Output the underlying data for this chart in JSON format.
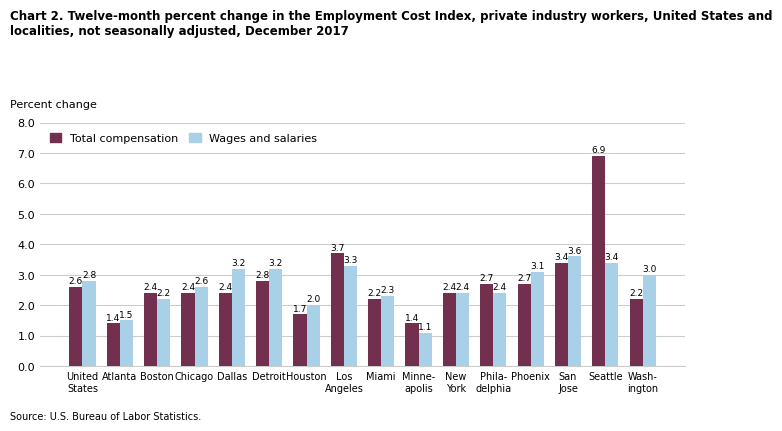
{
  "title": "Chart 2. Twelve-month percent change in the Employment Cost Index, private industry workers, United States and\nlocalities, not seasonally adjusted, December 2017",
  "ylabel": "Percent change",
  "source": "Source: U.S. Bureau of Labor Statistics.",
  "categories": [
    "United\nStates",
    "Atlanta",
    "Boston",
    "Chicago",
    "Dallas",
    "Detroit",
    "Houston",
    "Los\nAngeles",
    "Miami",
    "Minne-\napolis",
    "New\nYork",
    "Phila-\ndelphia",
    "Phoenix",
    "San\nJose",
    "Seattle",
    "Wash-\nington"
  ],
  "total_compensation": [
    2.6,
    1.4,
    2.4,
    2.4,
    2.4,
    2.8,
    1.7,
    3.7,
    2.2,
    1.4,
    2.4,
    2.7,
    2.7,
    3.4,
    6.9,
    2.2
  ],
  "wages_salaries": [
    2.8,
    1.5,
    2.2,
    2.6,
    3.2,
    3.2,
    2.0,
    3.3,
    2.3,
    1.1,
    2.4,
    2.4,
    3.1,
    3.6,
    3.4,
    3.0
  ],
  "total_comp_color": "#722F4E",
  "wages_color": "#A8D0E6",
  "ylim": [
    0,
    8.0
  ],
  "yticks": [
    0.0,
    1.0,
    2.0,
    3.0,
    4.0,
    5.0,
    6.0,
    7.0,
    8.0
  ],
  "ytick_labels": [
    "0.0",
    "1.0",
    "2.0",
    "3.0",
    "4.0",
    "5.0",
    "6.0",
    "7.0",
    "8.0"
  ],
  "legend_labels": [
    "Total compensation",
    "Wages and salaries"
  ],
  "bar_width": 0.35,
  "label_fontsize": 6.5,
  "axis_fontsize": 8,
  "title_fontsize": 8.5
}
